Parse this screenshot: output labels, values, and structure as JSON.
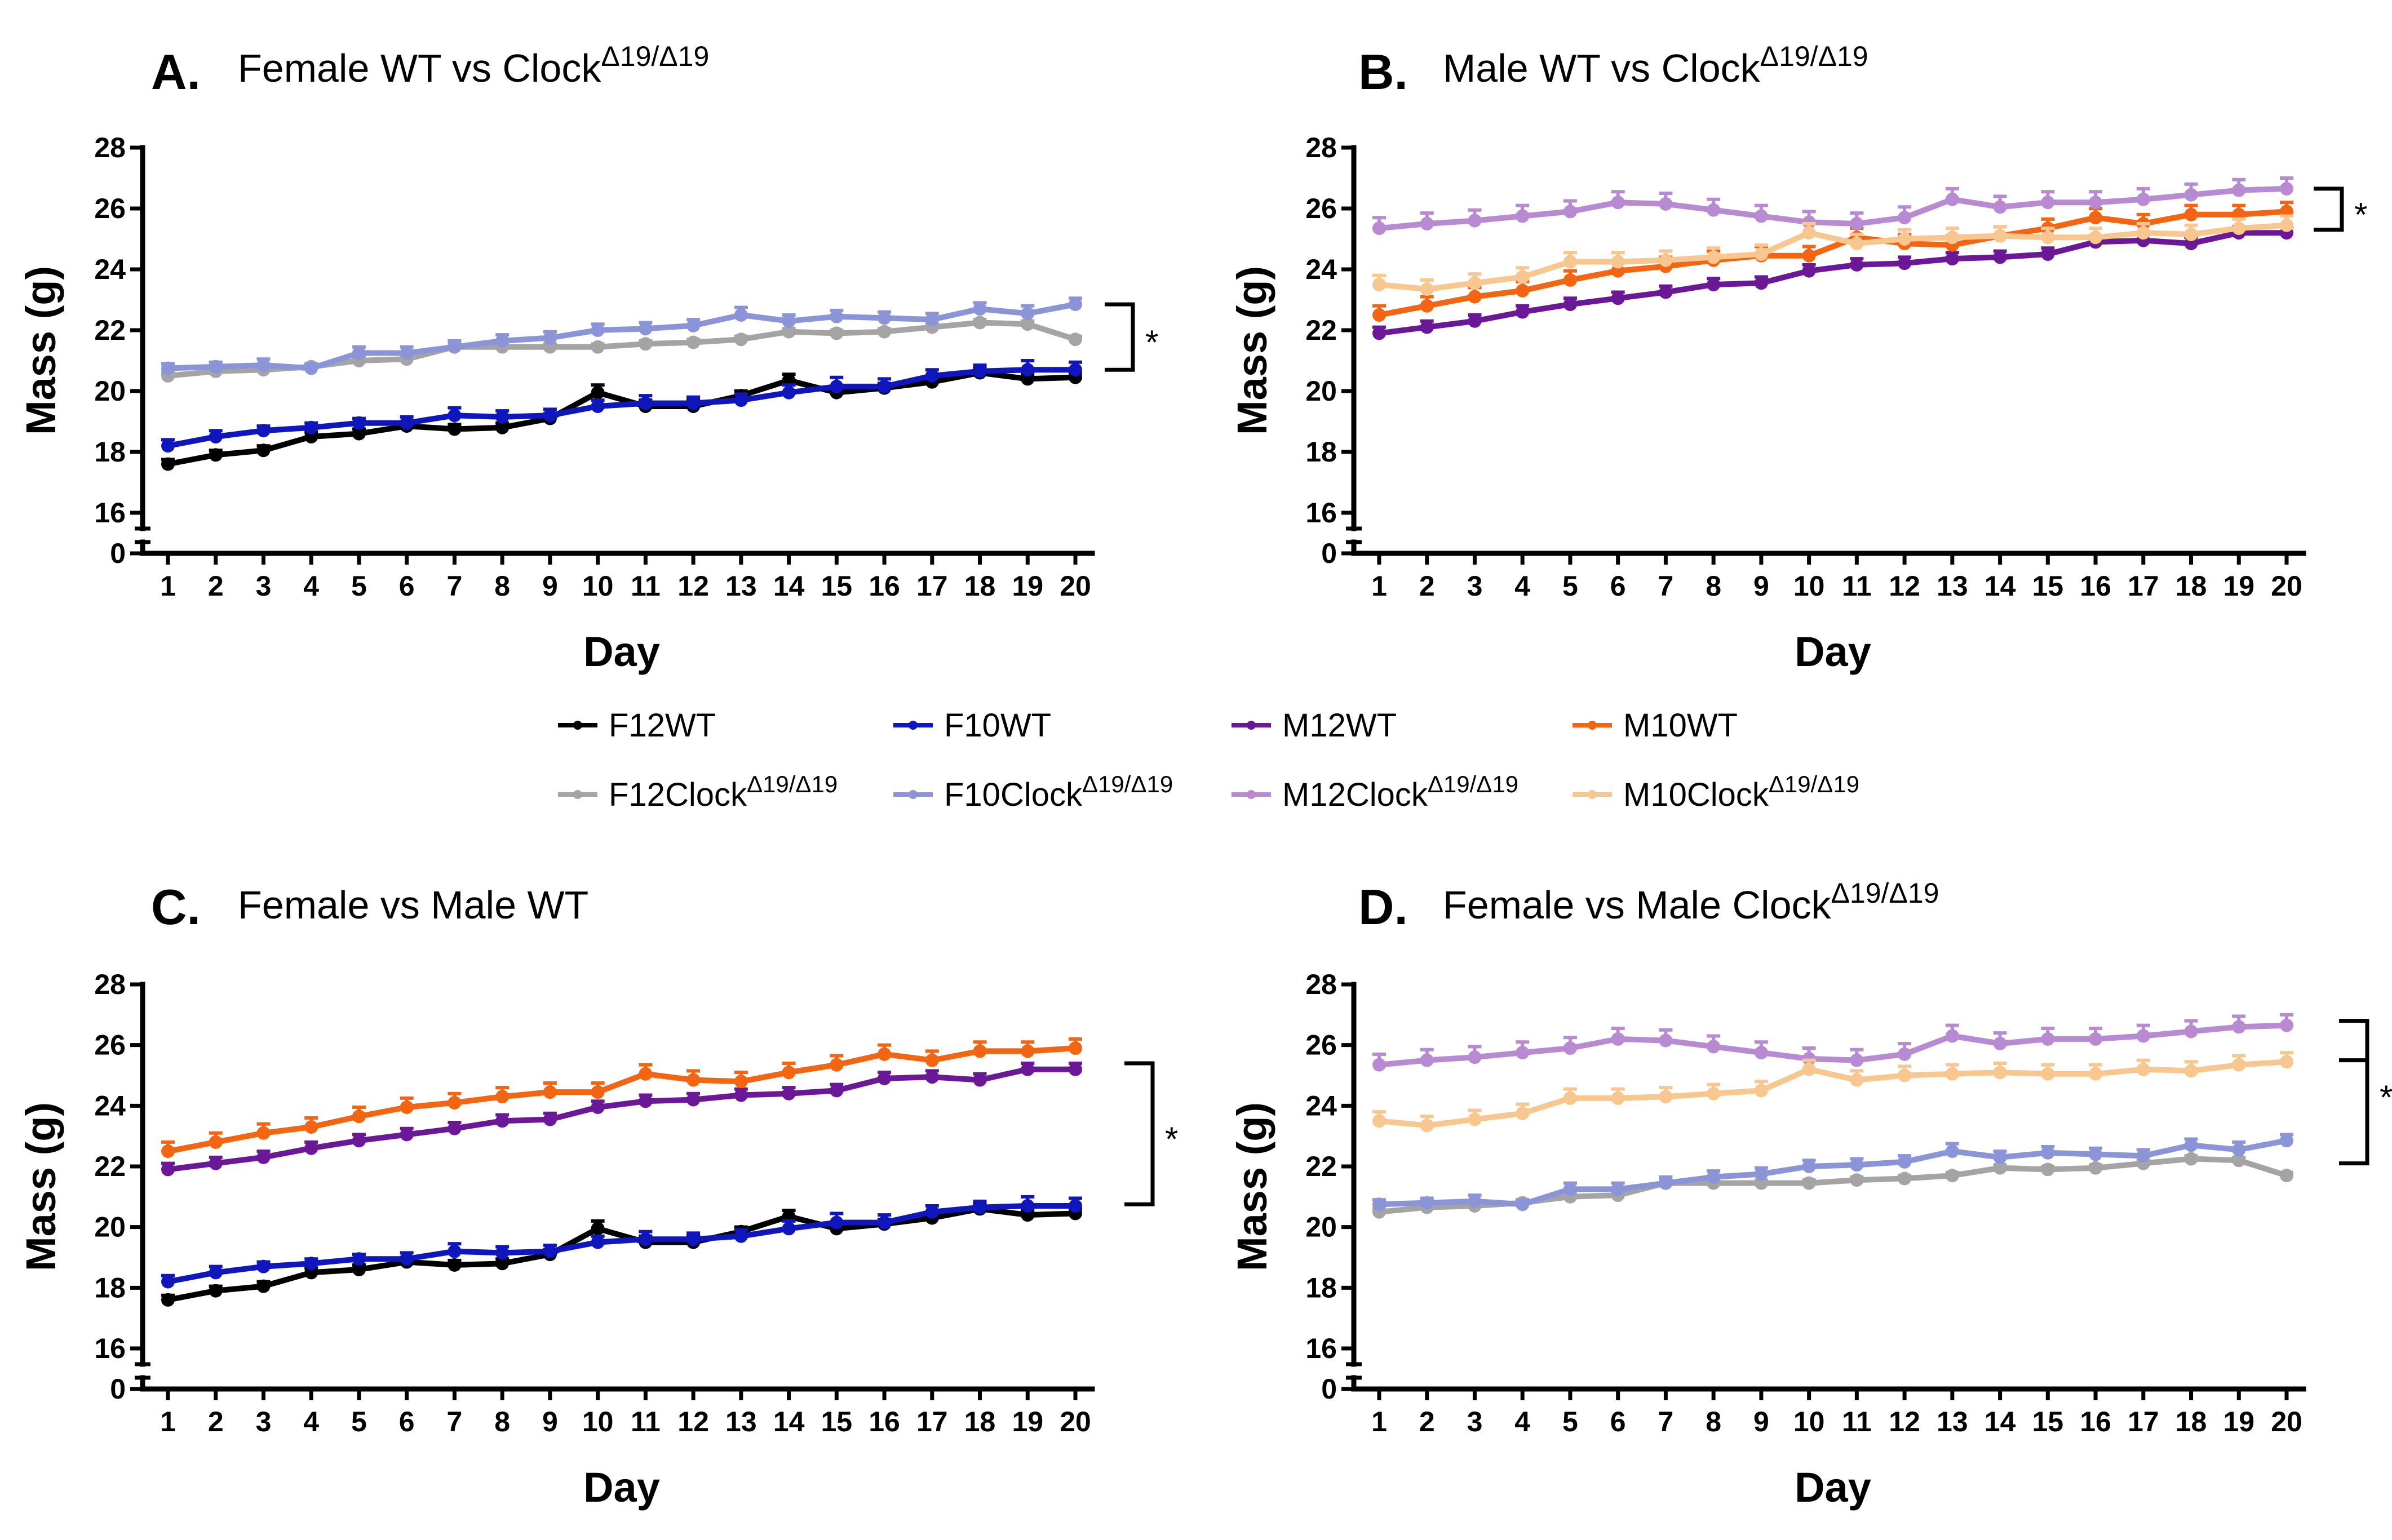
{
  "chart_data": [
    {
      "type": "line",
      "panel": "A.",
      "title": "Female WT vs Clock",
      "title_sup": "Δ19/Δ19",
      "xlabel": "Day",
      "ylabel": "Mass (g)",
      "x": [
        1,
        2,
        3,
        4,
        5,
        6,
        7,
        8,
        9,
        10,
        11,
        12,
        13,
        14,
        15,
        16,
        17,
        18,
        19,
        20
      ],
      "ylim": [
        16,
        28
      ],
      "yticks": [
        16,
        18,
        20,
        22,
        24,
        26,
        28
      ],
      "axis_break_label": "0",
      "series": [
        {
          "key": "F12WT",
          "name": "F12WT",
          "color": "#000000",
          "values": [
            17.6,
            17.9,
            18.05,
            18.5,
            18.6,
            18.85,
            18.75,
            18.8,
            19.1,
            19.95,
            19.5,
            19.5,
            19.85,
            20.35,
            19.95,
            20.1,
            20.3,
            20.6,
            20.4,
            20.45
          ],
          "errors": [
            0.15,
            0.15,
            0.15,
            0.15,
            0.15,
            0.15,
            0.15,
            0.15,
            0.15,
            0.25,
            0.2,
            0.2,
            0.15,
            0.2,
            0.2,
            0.15,
            0.15,
            0.15,
            0.15,
            0.15
          ]
        },
        {
          "key": "F10WT",
          "name": "F10WT",
          "color": "#0f16bc",
          "values": [
            18.2,
            18.5,
            18.7,
            18.8,
            18.95,
            18.95,
            19.2,
            19.15,
            19.2,
            19.5,
            19.6,
            19.6,
            19.7,
            19.95,
            20.15,
            20.15,
            20.5,
            20.65,
            20.7,
            20.7
          ],
          "errors": [
            0.2,
            0.2,
            0.15,
            0.15,
            0.15,
            0.2,
            0.25,
            0.2,
            0.2,
            0.2,
            0.25,
            0.2,
            0.2,
            0.25,
            0.3,
            0.25,
            0.2,
            0.2,
            0.3,
            0.25
          ]
        },
        {
          "key": "F12Clock",
          "name": "F12Clock",
          "sup": "Δ19/Δ19",
          "color": "#a4a4a4",
          "values": [
            20.5,
            20.65,
            20.7,
            20.8,
            21.0,
            21.05,
            21.45,
            21.45,
            21.45,
            21.45,
            21.55,
            21.6,
            21.7,
            21.95,
            21.9,
            21.95,
            22.1,
            22.25,
            22.2,
            21.7
          ],
          "errors": [
            0.1,
            0.1,
            0.1,
            0.1,
            0.1,
            0.1,
            0.1,
            0.1,
            0.1,
            0.1,
            0.1,
            0.1,
            0.1,
            0.1,
            0.1,
            0.1,
            0.1,
            0.1,
            0.1,
            0.1
          ]
        },
        {
          "key": "F10Clock",
          "name": "F10Clock",
          "sup": "Δ19/Δ19",
          "color": "#8c94d8",
          "values": [
            20.75,
            20.8,
            20.85,
            20.75,
            21.25,
            21.25,
            21.45,
            21.65,
            21.75,
            22.0,
            22.05,
            22.15,
            22.5,
            22.3,
            22.45,
            22.4,
            22.35,
            22.7,
            22.55,
            22.85
          ],
          "errors": [
            0.15,
            0.15,
            0.2,
            0.15,
            0.2,
            0.2,
            0.2,
            0.2,
            0.2,
            0.2,
            0.2,
            0.2,
            0.25,
            0.2,
            0.2,
            0.2,
            0.2,
            0.2,
            0.25,
            0.2
          ]
        }
      ],
      "significance": "*"
    },
    {
      "type": "line",
      "panel": "B.",
      "title": "Male WT vs Clock",
      "title_sup": "Δ19/Δ19",
      "xlabel": "Day",
      "ylabel": "Mass (g)",
      "x": [
        1,
        2,
        3,
        4,
        5,
        6,
        7,
        8,
        9,
        10,
        11,
        12,
        13,
        14,
        15,
        16,
        17,
        18,
        19,
        20
      ],
      "ylim": [
        16,
        28
      ],
      "yticks": [
        16,
        18,
        20,
        22,
        24,
        26,
        28
      ],
      "axis_break_label": "0",
      "series": [
        {
          "key": "M12WT",
          "name": "M12WT",
          "color": "#6a1896",
          "values": [
            21.9,
            22.1,
            22.3,
            22.6,
            22.85,
            23.05,
            23.25,
            23.5,
            23.55,
            23.95,
            24.15,
            24.2,
            24.35,
            24.4,
            24.5,
            24.9,
            24.95,
            24.85,
            25.2,
            25.2
          ],
          "errors": [
            0.2,
            0.2,
            0.2,
            0.2,
            0.2,
            0.2,
            0.2,
            0.2,
            0.2,
            0.2,
            0.2,
            0.2,
            0.2,
            0.2,
            0.2,
            0.2,
            0.2,
            0.2,
            0.2,
            0.2
          ]
        },
        {
          "key": "M10WT",
          "name": "M10WT",
          "color": "#f26512",
          "values": [
            22.5,
            22.8,
            23.1,
            23.3,
            23.65,
            23.95,
            24.1,
            24.3,
            24.45,
            24.45,
            25.05,
            24.85,
            24.8,
            25.1,
            25.35,
            25.7,
            25.5,
            25.8,
            25.8,
            25.9
          ],
          "errors": [
            0.3,
            0.3,
            0.3,
            0.3,
            0.3,
            0.3,
            0.3,
            0.3,
            0.3,
            0.3,
            0.3,
            0.3,
            0.3,
            0.3,
            0.3,
            0.3,
            0.3,
            0.3,
            0.3,
            0.3
          ]
        },
        {
          "key": "M12Clock",
          "name": "M12Clock",
          "sup": "Δ19/Δ19",
          "color": "#b88ad2",
          "values": [
            25.35,
            25.5,
            25.6,
            25.75,
            25.9,
            26.2,
            26.15,
            25.95,
            25.75,
            25.55,
            25.5,
            25.7,
            26.3,
            26.05,
            26.2,
            26.2,
            26.3,
            26.45,
            26.6,
            26.65
          ],
          "errors": [
            0.35,
            0.35,
            0.35,
            0.35,
            0.35,
            0.35,
            0.35,
            0.35,
            0.35,
            0.35,
            0.35,
            0.35,
            0.35,
            0.35,
            0.35,
            0.35,
            0.35,
            0.35,
            0.35,
            0.35
          ]
        },
        {
          "key": "M10Clock",
          "name": "M10Clock",
          "sup": "Δ19/Δ19",
          "color": "#f8c790",
          "values": [
            23.5,
            23.35,
            23.55,
            23.75,
            24.25,
            24.25,
            24.3,
            24.4,
            24.5,
            25.2,
            24.85,
            25.0,
            25.05,
            25.1,
            25.05,
            25.05,
            25.2,
            25.15,
            25.35,
            25.45
          ],
          "errors": [
            0.3,
            0.3,
            0.3,
            0.3,
            0.3,
            0.3,
            0.3,
            0.3,
            0.3,
            0.3,
            0.3,
            0.3,
            0.3,
            0.3,
            0.3,
            0.3,
            0.3,
            0.3,
            0.3,
            0.3
          ]
        }
      ],
      "significance": "*"
    },
    {
      "type": "line",
      "panel": "C.",
      "title": "Female vs Male WT",
      "title_sup": "",
      "xlabel": "Day",
      "ylabel": "Mass (g)",
      "x": [
        1,
        2,
        3,
        4,
        5,
        6,
        7,
        8,
        9,
        10,
        11,
        12,
        13,
        14,
        15,
        16,
        17,
        18,
        19,
        20
      ],
      "ylim": [
        16,
        28
      ],
      "yticks": [
        16,
        18,
        20,
        22,
        24,
        26,
        28
      ],
      "axis_break_label": "0",
      "series": [
        {
          "key": "F12WT",
          "name": "F12WT",
          "color": "#000000",
          "values": [
            17.6,
            17.9,
            18.05,
            18.5,
            18.6,
            18.85,
            18.75,
            18.8,
            19.1,
            19.95,
            19.5,
            19.5,
            19.85,
            20.35,
            19.95,
            20.1,
            20.3,
            20.6,
            20.4,
            20.45
          ],
          "errors": [
            0.15,
            0.15,
            0.15,
            0.15,
            0.15,
            0.15,
            0.15,
            0.15,
            0.15,
            0.25,
            0.2,
            0.2,
            0.15,
            0.2,
            0.2,
            0.15,
            0.15,
            0.15,
            0.15,
            0.15
          ]
        },
        {
          "key": "F10WT",
          "name": "F10WT",
          "color": "#0f16bc",
          "values": [
            18.2,
            18.5,
            18.7,
            18.8,
            18.95,
            18.95,
            19.2,
            19.15,
            19.2,
            19.5,
            19.6,
            19.6,
            19.7,
            19.95,
            20.15,
            20.15,
            20.5,
            20.65,
            20.7,
            20.7
          ],
          "errors": [
            0.2,
            0.2,
            0.15,
            0.15,
            0.15,
            0.2,
            0.25,
            0.2,
            0.2,
            0.2,
            0.25,
            0.2,
            0.2,
            0.25,
            0.3,
            0.25,
            0.2,
            0.2,
            0.3,
            0.25
          ]
        },
        {
          "key": "M12WT",
          "name": "M12WT",
          "color": "#6a1896",
          "values": [
            21.9,
            22.1,
            22.3,
            22.6,
            22.85,
            23.05,
            23.25,
            23.5,
            23.55,
            23.95,
            24.15,
            24.2,
            24.35,
            24.4,
            24.5,
            24.9,
            24.95,
            24.85,
            25.2,
            25.2
          ],
          "errors": [
            0.2,
            0.2,
            0.2,
            0.2,
            0.2,
            0.2,
            0.2,
            0.2,
            0.2,
            0.2,
            0.2,
            0.2,
            0.2,
            0.2,
            0.2,
            0.2,
            0.2,
            0.2,
            0.2,
            0.2
          ]
        },
        {
          "key": "M10WT",
          "name": "M10WT",
          "color": "#f26512",
          "values": [
            22.5,
            22.8,
            23.1,
            23.3,
            23.65,
            23.95,
            24.1,
            24.3,
            24.45,
            24.45,
            25.05,
            24.85,
            24.8,
            25.1,
            25.35,
            25.7,
            25.5,
            25.8,
            25.8,
            25.9
          ],
          "errors": [
            0.3,
            0.3,
            0.3,
            0.3,
            0.3,
            0.3,
            0.3,
            0.3,
            0.3,
            0.3,
            0.3,
            0.3,
            0.3,
            0.3,
            0.3,
            0.3,
            0.3,
            0.3,
            0.3,
            0.3
          ]
        }
      ],
      "significance": "*"
    },
    {
      "type": "line",
      "panel": "D.",
      "title": "Female vs Male Clock",
      "title_sup": "Δ19/Δ19",
      "xlabel": "Day",
      "ylabel": "Mass (g)",
      "x": [
        1,
        2,
        3,
        4,
        5,
        6,
        7,
        8,
        9,
        10,
        11,
        12,
        13,
        14,
        15,
        16,
        17,
        18,
        19,
        20
      ],
      "ylim": [
        16,
        28
      ],
      "yticks": [
        16,
        18,
        20,
        22,
        24,
        26,
        28
      ],
      "axis_break_label": "0",
      "series": [
        {
          "key": "F12Clock",
          "name": "F12Clock",
          "sup": "Δ19/Δ19",
          "color": "#a4a4a4",
          "values": [
            20.5,
            20.65,
            20.7,
            20.8,
            21.0,
            21.05,
            21.45,
            21.45,
            21.45,
            21.45,
            21.55,
            21.6,
            21.7,
            21.95,
            21.9,
            21.95,
            22.1,
            22.25,
            22.2,
            21.7
          ],
          "errors": [
            0.1,
            0.1,
            0.1,
            0.1,
            0.1,
            0.1,
            0.1,
            0.1,
            0.1,
            0.1,
            0.1,
            0.1,
            0.1,
            0.1,
            0.1,
            0.1,
            0.1,
            0.1,
            0.1,
            0.1
          ]
        },
        {
          "key": "F10Clock",
          "name": "F10Clock",
          "sup": "Δ19/Δ19",
          "color": "#8c94d8",
          "values": [
            20.75,
            20.8,
            20.85,
            20.75,
            21.25,
            21.25,
            21.45,
            21.65,
            21.75,
            22.0,
            22.05,
            22.15,
            22.5,
            22.3,
            22.45,
            22.4,
            22.35,
            22.7,
            22.55,
            22.85
          ],
          "errors": [
            0.15,
            0.15,
            0.2,
            0.15,
            0.2,
            0.2,
            0.2,
            0.2,
            0.2,
            0.2,
            0.2,
            0.2,
            0.25,
            0.2,
            0.2,
            0.2,
            0.2,
            0.2,
            0.25,
            0.2
          ]
        },
        {
          "key": "M12Clock",
          "name": "M12Clock",
          "sup": "Δ19/Δ19",
          "color": "#b88ad2",
          "values": [
            25.35,
            25.5,
            25.6,
            25.75,
            25.9,
            26.2,
            26.15,
            25.95,
            25.75,
            25.55,
            25.5,
            25.7,
            26.3,
            26.05,
            26.2,
            26.2,
            26.3,
            26.45,
            26.6,
            26.65
          ],
          "errors": [
            0.35,
            0.35,
            0.35,
            0.35,
            0.35,
            0.35,
            0.35,
            0.35,
            0.35,
            0.35,
            0.35,
            0.35,
            0.35,
            0.35,
            0.35,
            0.35,
            0.35,
            0.35,
            0.35,
            0.35
          ]
        },
        {
          "key": "M10Clock",
          "name": "M10Clock",
          "sup": "Δ19/Δ19",
          "color": "#f8c790",
          "values": [
            23.5,
            23.35,
            23.55,
            23.75,
            24.25,
            24.25,
            24.3,
            24.4,
            24.5,
            25.2,
            24.85,
            25.0,
            25.05,
            25.1,
            25.05,
            25.05,
            25.2,
            25.15,
            25.35,
            25.45
          ],
          "errors": [
            0.3,
            0.3,
            0.3,
            0.3,
            0.3,
            0.3,
            0.3,
            0.3,
            0.3,
            0.3,
            0.3,
            0.3,
            0.3,
            0.3,
            0.3,
            0.3,
            0.3,
            0.3,
            0.3,
            0.3
          ]
        }
      ],
      "significance": "*"
    }
  ],
  "legend": {
    "placement": "center, between top and bottom rows",
    "entries": [
      {
        "name": "F12WT",
        "sup": "",
        "color": "#000000"
      },
      {
        "name": "F10WT",
        "sup": "",
        "color": "#0f16bc"
      },
      {
        "name": "M12WT",
        "sup": "",
        "color": "#6a1896"
      },
      {
        "name": "M10WT",
        "sup": "",
        "color": "#f26512"
      },
      {
        "name": "F12Clock",
        "sup": "Δ19/Δ19",
        "color": "#a4a4a4"
      },
      {
        "name": "F10Clock",
        "sup": "Δ19/Δ19",
        "color": "#8c94d8"
      },
      {
        "name": "M12Clock",
        "sup": "Δ19/Δ19",
        "color": "#b88ad2"
      },
      {
        "name": "M10Clock",
        "sup": "Δ19/Δ19",
        "color": "#f8c790"
      }
    ]
  }
}
